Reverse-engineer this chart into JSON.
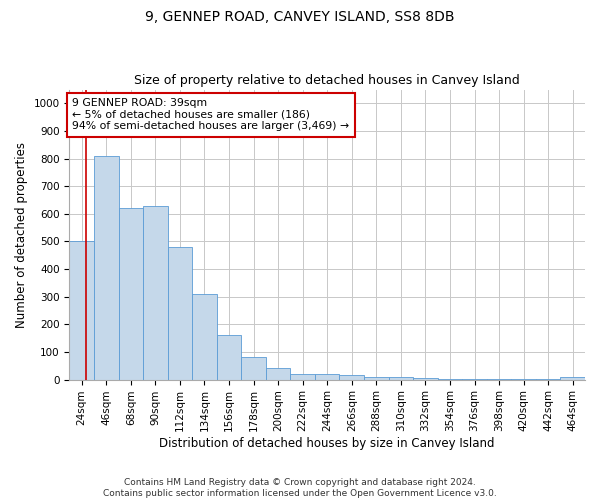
{
  "title1": "9, GENNEP ROAD, CANVEY ISLAND, SS8 8DB",
  "title2": "Size of property relative to detached houses in Canvey Island",
  "xlabel": "Distribution of detached houses by size in Canvey Island",
  "ylabel": "Number of detached properties",
  "footer": "Contains HM Land Registry data © Crown copyright and database right 2024.\nContains public sector information licensed under the Open Government Licence v3.0.",
  "categories": [
    "24sqm",
    "46sqm",
    "68sqm",
    "90sqm",
    "112sqm",
    "134sqm",
    "156sqm",
    "178sqm",
    "200sqm",
    "222sqm",
    "244sqm",
    "266sqm",
    "288sqm",
    "310sqm",
    "332sqm",
    "354sqm",
    "376sqm",
    "398sqm",
    "420sqm",
    "442sqm",
    "464sqm"
  ],
  "values": [
    500,
    810,
    620,
    630,
    480,
    310,
    160,
    80,
    42,
    20,
    20,
    15,
    10,
    8,
    5,
    3,
    3,
    3,
    1,
    1,
    8
  ],
  "bar_color": "#c5d8ea",
  "bar_edge_color": "#5b9bd5",
  "marker_color": "#cc0000",
  "annotation_title": "9 GENNEP ROAD: 39sqm",
  "annotation_line1": "← 5% of detached houses are smaller (186)",
  "annotation_line2": "94% of semi-detached houses are larger (3,469) →",
  "annotation_box_color": "#ffffff",
  "annotation_box_edge": "#cc0000",
  "ylim": [
    0,
    1050
  ],
  "yticks": [
    0,
    100,
    200,
    300,
    400,
    500,
    600,
    700,
    800,
    900,
    1000
  ],
  "grid_color": "#c8c8c8",
  "bg_color": "#ffffff",
  "title1_fontsize": 10,
  "title2_fontsize": 9,
  "xlabel_fontsize": 8.5,
  "ylabel_fontsize": 8.5,
  "tick_fontsize": 7.5,
  "footer_fontsize": 6.5
}
